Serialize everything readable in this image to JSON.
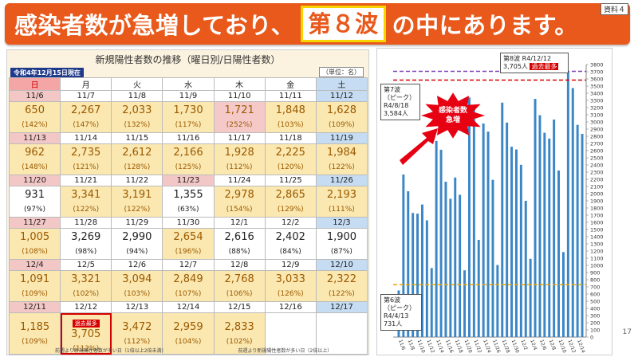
{
  "doc_tag": "資料４",
  "page_number": "17",
  "banner": {
    "part1": "感染者数が急増しており、",
    "highlight": "第８波",
    "part2": "の中にあります。"
  },
  "table": {
    "title": "新規陽性者数の推移（曜日別/日陽性者数）",
    "as_of": "令和4年12月15日現在",
    "unit": "（単位：名）",
    "weekdays": [
      "日",
      "月",
      "火",
      "水",
      "木",
      "金",
      "土"
    ],
    "weeks": [
      {
        "dates": [
          "11/6",
          "11/7",
          "11/8",
          "11/9",
          "11/10",
          "11/11",
          "11/12"
        ],
        "values": [
          "650",
          "2,267",
          "2,033",
          "1,730",
          "1,721",
          "1,848",
          "1,628"
        ],
        "pcts": [
          "(142%)",
          "(147%)",
          "(132%)",
          "(117%)",
          "(252%)",
          "(103%)",
          "(109%)"
        ]
      },
      {
        "dates": [
          "11/13",
          "11/14",
          "11/15",
          "11/16",
          "11/17",
          "11/18",
          "11/19"
        ],
        "values": [
          "962",
          "2,735",
          "2,612",
          "2,166",
          "1,928",
          "2,225",
          "1,984"
        ],
        "pcts": [
          "(148%)",
          "(121%)",
          "(128%)",
          "(125%)",
          "(112%)",
          "(120%)",
          "(122%)"
        ]
      },
      {
        "dates": [
          "11/20",
          "11/21",
          "11/22",
          "11/23",
          "11/24",
          "11/25",
          "11/26"
        ],
        "values": [
          "931",
          "3,341",
          "3,191",
          "1,355",
          "2,978",
          "2,865",
          "2,193"
        ],
        "pcts": [
          "(97%)",
          "(122%)",
          "(122%)",
          "(63%)",
          "(154%)",
          "(129%)",
          "(111%)"
        ]
      },
      {
        "dates": [
          "11/27",
          "11/28",
          "11/29",
          "11/30",
          "12/1",
          "12/2",
          "12/3"
        ],
        "values": [
          "1,005",
          "3,269",
          "2,990",
          "2,654",
          "2,616",
          "2,402",
          "1,900"
        ],
        "pcts": [
          "(108%)",
          "(98%)",
          "(94%)",
          "(196%)",
          "(88%)",
          "(84%)",
          "(87%)"
        ]
      },
      {
        "dates": [
          "12/4",
          "12/5",
          "12/6",
          "12/7",
          "12/8",
          "12/9",
          "12/10"
        ],
        "values": [
          "1,091",
          "3,321",
          "3,094",
          "2,849",
          "2,768",
          "3,033",
          "2,322"
        ],
        "pcts": [
          "(109%)",
          "(102%)",
          "(103%)",
          "(107%)",
          "(106%)",
          "(126%)",
          "(122%)"
        ]
      },
      {
        "dates": [
          "12/11",
          "12/12",
          "12/13",
          "12/14",
          "12/15",
          "12/16",
          "12/17"
        ],
        "values": [
          "1,185",
          "3,705",
          "3,472",
          "2,959",
          "2,833",
          "",
          ""
        ],
        "pcts": [
          "(109%)",
          "(112%)",
          "(112%)",
          "(104%)",
          "(102%)",
          "",
          ""
        ]
      }
    ],
    "record_badge": "過去最多",
    "legend": [
      "前週より新規陽性者数が多い日（1倍以上2倍未満）",
      "前週より新規陽性者数が多い日（2倍以上）"
    ],
    "legend_key": "数字"
  },
  "chart_data": {
    "type": "bar",
    "ylim": [
      0,
      3800
    ],
    "yticks": [
      0,
      100,
      200,
      300,
      400,
      500,
      600,
      700,
      800,
      900,
      1000,
      1100,
      1200,
      1300,
      1400,
      1500,
      1600,
      1700,
      1800,
      1900,
      2000,
      2100,
      2200,
      2300,
      2400,
      2500,
      2600,
      2700,
      2800,
      2900,
      3000,
      3100,
      3200,
      3300,
      3400,
      3500,
      3600,
      3700,
      3800
    ],
    "categories": [
      "11/6",
      "11/7",
      "11/8",
      "11/9",
      "11/10",
      "11/11",
      "11/12",
      "11/13",
      "11/14",
      "11/15",
      "11/16",
      "11/17",
      "11/18",
      "11/19",
      "11/20",
      "11/21",
      "11/22",
      "11/23",
      "11/24",
      "11/25",
      "11/26",
      "11/27",
      "11/28",
      "11/29",
      "11/30",
      "12/1",
      "12/2",
      "12/3",
      "12/4",
      "12/5",
      "12/6",
      "12/7",
      "12/8",
      "12/9",
      "12/10",
      "12/11",
      "12/12",
      "12/13",
      "12/14",
      "12/15"
    ],
    "xtick_labels": [
      "11/6",
      "11/8",
      "11/10",
      "11/12",
      "11/14",
      "11/16",
      "11/18",
      "11/20",
      "11/22",
      "11/24",
      "11/26",
      "11/28",
      "11/30",
      "12/2",
      "12/4",
      "12/6",
      "12/8",
      "12/10",
      "12/12",
      "12/14"
    ],
    "values": [
      650,
      2267,
      2033,
      1730,
      1721,
      1848,
      1628,
      962,
      2735,
      2612,
      2166,
      1928,
      2225,
      1984,
      931,
      3341,
      3191,
      1355,
      2978,
      2865,
      2193,
      1005,
      3269,
      2990,
      2654,
      2616,
      2402,
      1900,
      1091,
      3321,
      3094,
      2849,
      2768,
      3033,
      2322,
      1185,
      3705,
      3472,
      2959,
      2833
    ],
    "bar_color": "#3a86c6",
    "reference_lines": [
      {
        "value": 3705,
        "color": "#7a3fb5",
        "style": "dashed"
      },
      {
        "value": 3584,
        "color": "#d40000",
        "style": "dashed"
      },
      {
        "value": 731,
        "color": "#e8a500",
        "style": "dashed"
      }
    ],
    "annotations": {
      "wave8": {
        "label": "第8波 R4/12/12",
        "value": "3,705人",
        "badge": "過去最多"
      },
      "wave7": {
        "line1": "第7波",
        "line2": "（ピーク）",
        "line3": "R4/8/18",
        "line4": "3,584人"
      },
      "wave6": {
        "line1": "第6波",
        "line2": "（ピーク）",
        "line3": "R4/4/13",
        "line4": "731人"
      },
      "burst": {
        "line1": "感染者数",
        "line2": "急増"
      }
    }
  }
}
